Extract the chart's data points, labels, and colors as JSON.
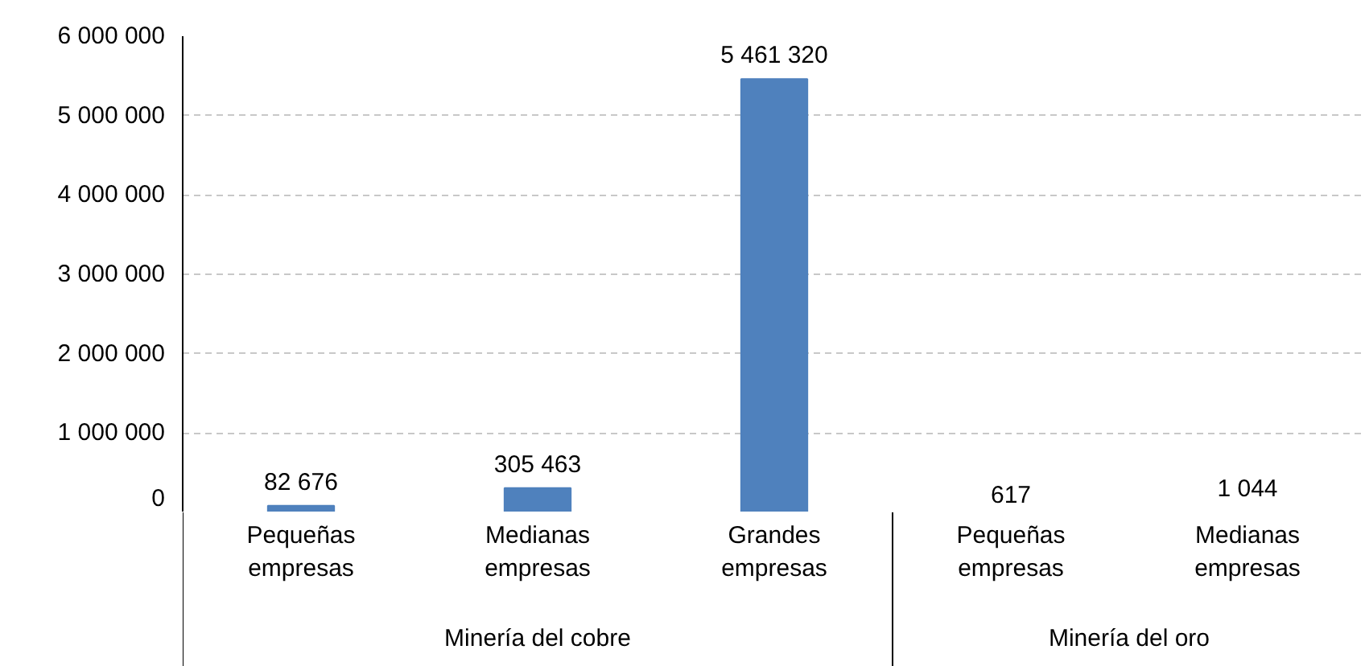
{
  "chart_data": {
    "type": "bar",
    "categories": [
      "Pequeñas\nempresas",
      "Medianas\nempresas",
      "Grandes\nempresas",
      "Pequeñas\nempresas",
      "Medianas\nempresas"
    ],
    "values": [
      82676,
      305463,
      5461320,
      617,
      1044
    ],
    "value_labels": [
      "82 676",
      "305 463",
      "5 461 320",
      "617",
      "1 044"
    ],
    "color": "#4f81bd",
    "annotations": [
      "Minería del cobre",
      "Minería del oro"
    ],
    "ylim": [
      0,
      6000000
    ],
    "yticks": [
      {
        "value": 0,
        "label": "0"
      },
      {
        "value": 1000000,
        "label": "1 000 000"
      },
      {
        "value": 2000000,
        "label": "2 000 000"
      },
      {
        "value": 3000000,
        "label": "3 000 000"
      },
      {
        "value": 4000000,
        "label": "4 000 000"
      },
      {
        "value": 5000000,
        "label": "5 000 000"
      },
      {
        "value": 6000000,
        "label": "6 000 000"
      }
    ],
    "grid": "y"
  }
}
